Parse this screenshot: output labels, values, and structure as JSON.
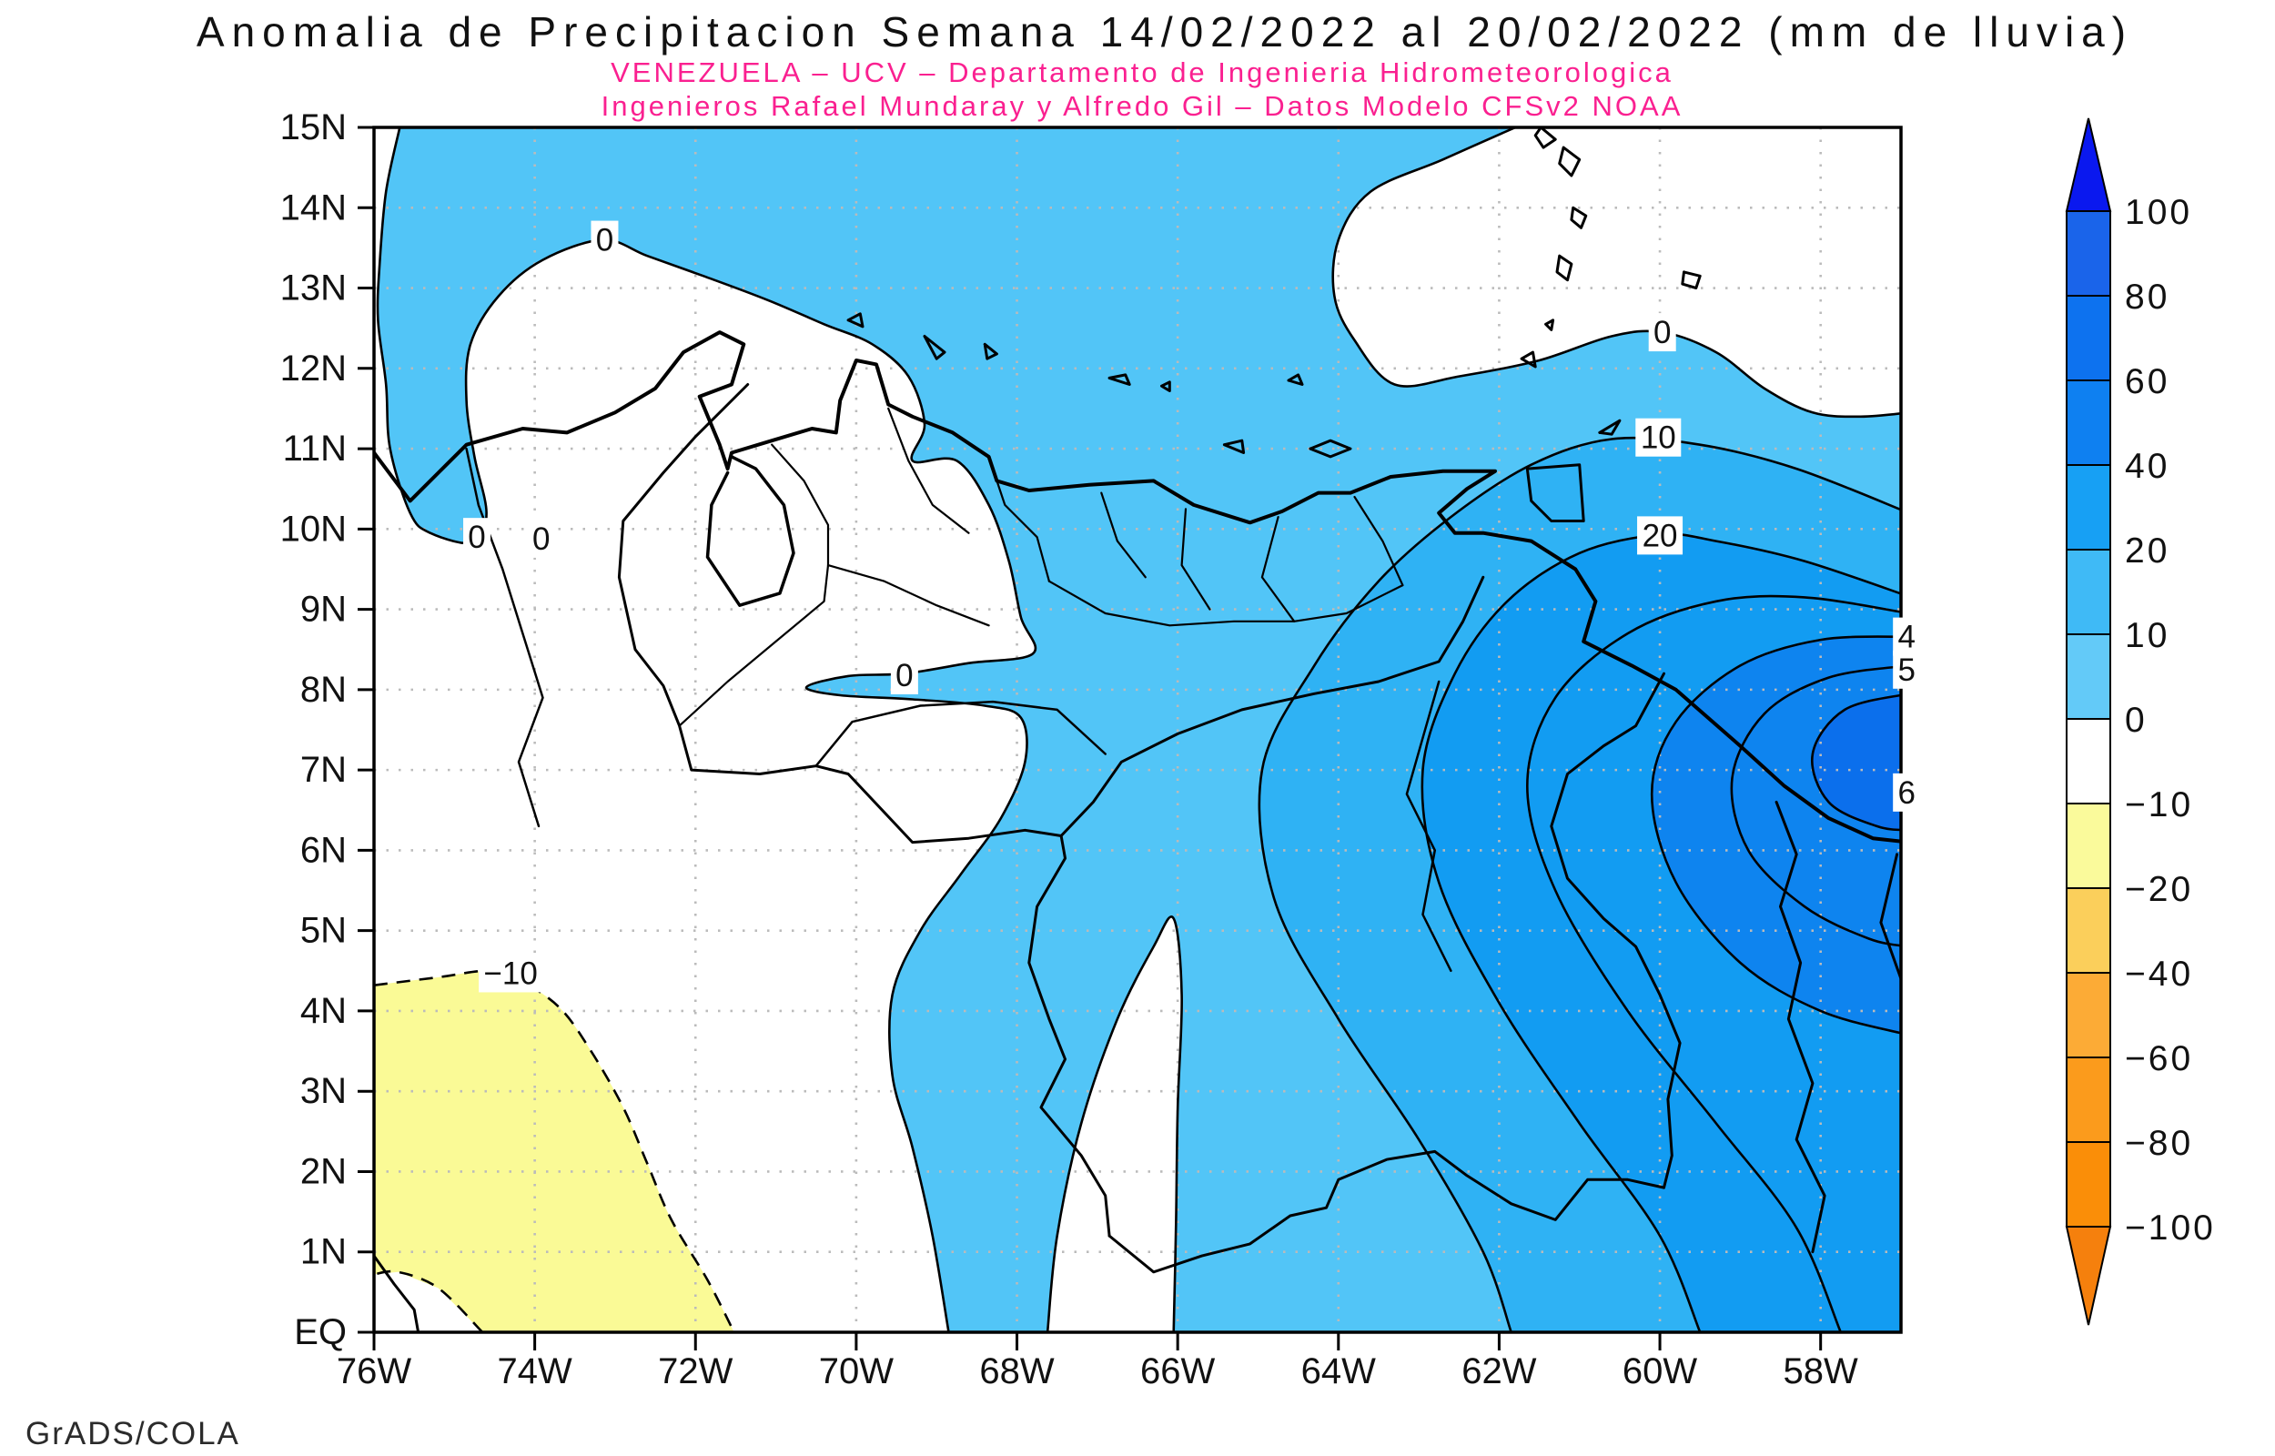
{
  "header": {
    "title": "Anomalia de Precipitacion Semana 14/02/2022 al 20/02/2022 (mm de lluvia)",
    "subtitle1": "VENEZUELA – UCV – Departamento de Ingenieria Hidrometeorologica",
    "subtitle2": "Ingenieros Rafael Mundaray y Alfredo Gil – Datos Modelo CFSv2 NOAA"
  },
  "credit": "GrADS/COLA",
  "axes": {
    "lat_labels": [
      "15N",
      "14N",
      "13N",
      "12N",
      "11N",
      "10N",
      "9N",
      "8N",
      "7N",
      "6N",
      "5N",
      "4N",
      "3N",
      "2N",
      "1N",
      "EQ"
    ],
    "lon_labels": [
      "76W",
      "74W",
      "72W",
      "70W",
      "68W",
      "66W",
      "64W",
      "62W",
      "60W",
      "58W"
    ],
    "lat_values": [
      15,
      14,
      13,
      12,
      11,
      10,
      9,
      8,
      7,
      6,
      5,
      4,
      3,
      2,
      1,
      0
    ],
    "lon_values": [
      -76,
      -74,
      -72,
      -70,
      -68,
      -66,
      -64,
      -62,
      -60,
      -58
    ]
  },
  "colorbar": {
    "tick_labels": [
      "100",
      "80",
      "60",
      "40",
      "20",
      "10",
      "0",
      "−10",
      "−20",
      "−40",
      "−60",
      "−80",
      "−100"
    ],
    "segment_colors": [
      "#1a64ea",
      "#0d72ef",
      "#0e80f1",
      "#17a0f4",
      "#3fbaf6",
      "#63caf8",
      "#ffffff",
      "#fafa9b",
      "#fbcf5b",
      "#fcab36",
      "#fb9b1c",
      "#fa8e08"
    ],
    "arrow_top_color": "#0a18ef",
    "arrow_bottom_color": "#f5800d"
  },
  "map_colors": {
    "base_0_10": "#52c5f7",
    "band_10_20": "#2fb2f4",
    "band_20_40": "#129cf2",
    "band_40_60": "#0e84ef",
    "core_60_80": "#0b6fec",
    "negative_10_20": "#fafa96",
    "white": "#ffffff",
    "grid": "#bbbbbb",
    "line": "#000000",
    "pink": "#fa2090"
  },
  "contour_labels": [
    {
      "text": "0",
      "lon": -73.13,
      "lat": 13.6
    },
    {
      "text": "0",
      "lon": -74.72,
      "lat": 9.9
    },
    {
      "text": "0",
      "lon": -73.92,
      "lat": 9.88
    },
    {
      "text": "0",
      "lon": -69.4,
      "lat": 8.18
    },
    {
      "text": "0",
      "lon": -59.97,
      "lat": 12.45
    },
    {
      "text": "10",
      "lon": -60.02,
      "lat": 11.14
    },
    {
      "text": "20",
      "lon": -60.0,
      "lat": 9.92
    },
    {
      "text": "−10",
      "lon": -74.3,
      "lat": 4.47
    },
    {
      "text": "4",
      "lon": -56.93,
      "lat": 8.66
    },
    {
      "text": "5",
      "lon": -56.93,
      "lat": 8.25
    },
    {
      "text": "6",
      "lon": -56.93,
      "lat": 6.72
    }
  ],
  "chart_data": {
    "type": "contour_map",
    "title": "Anomalia de Precipitacion Semana 14/02/2022 al 20/02/2022 (mm de lluvia)",
    "variable": "weekly precipitation anomaly (mm of rain)",
    "region": "Venezuela and surroundings",
    "x_range_deg_lon": [
      -76,
      -57
    ],
    "y_range_deg_lat": [
      0,
      15
    ],
    "xlabel_ticks": [
      "76W",
      "74W",
      "72W",
      "70W",
      "68W",
      "66W",
      "64W",
      "62W",
      "60W",
      "58W"
    ],
    "ylabel_ticks": [
      "EQ",
      "1N",
      "2N",
      "3N",
      "4N",
      "5N",
      "6N",
      "7N",
      "8N",
      "9N",
      "10N",
      "11N",
      "12N",
      "13N",
      "14N",
      "15N"
    ],
    "contour_levels_shown": [
      -10,
      0,
      10,
      20,
      30,
      40,
      50,
      60
    ],
    "shading_levels": [
      -100,
      -80,
      -60,
      -40,
      -20,
      -10,
      0,
      10,
      20,
      40,
      60,
      80,
      100
    ],
    "positive_center": {
      "lon": -57.3,
      "lat": 7.2,
      "value_mm": "60 to 80"
    },
    "negative_center": {
      "lon": -74.5,
      "lat": 2.0,
      "value_mm": "-10 to -20"
    },
    "notes": "Blue shading >0 mm anomaly over eastern Venezuela/Guyana with nested contours 10-60; white near 0; pale-yellow -10 to -20 region in southwest (Colombia); dashed contour for negative values; model CFSv2 NOAA; rendered with GrADS/COLA.",
    "grid": "dotted, 1 deg lat x 2 deg lon",
    "legend_position": "right vertical colorbar with end arrows"
  }
}
